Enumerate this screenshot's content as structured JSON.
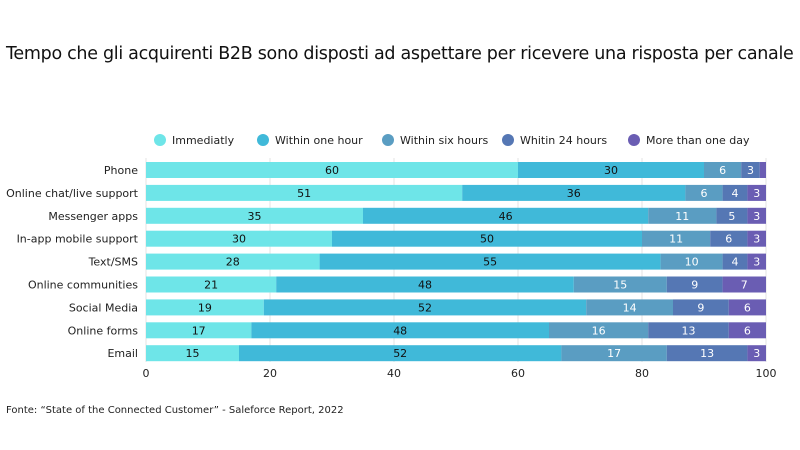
{
  "title": "Tempo che gli acquirenti B2B sono disposti ad aspettare per ricevere una risposta per canale",
  "source": "Fonte: “State of the Connected Customer” - Saleforce Report, 2022",
  "chart_data": {
    "type": "bar",
    "orientation": "horizontal",
    "stacked": true,
    "title": "Tempo che gli acquirenti B2B sono disposti ad aspettare per ricevere una risposta per canale",
    "categories": [
      "Phone",
      "Online chat/live support",
      "Messenger apps",
      "In-app mobile support",
      "Text/SMS",
      "Online communities",
      "Social Media",
      "Online forms",
      "Email"
    ],
    "series": [
      {
        "name": "Immediatly",
        "color": "#6ee5e8",
        "values": [
          60,
          51,
          35,
          30,
          28,
          21,
          19,
          17,
          15
        ]
      },
      {
        "name": "Within one hour",
        "color": "#40b9d9",
        "values": [
          30,
          36,
          46,
          50,
          55,
          48,
          52,
          48,
          52
        ]
      },
      {
        "name": "Within six hours",
        "color": "#5a9dc2",
        "values": [
          6,
          6,
          11,
          11,
          10,
          15,
          14,
          16,
          17
        ]
      },
      {
        "name": "Whitin 24 hours",
        "color": "#5577b4",
        "values": [
          3,
          4,
          5,
          6,
          4,
          9,
          9,
          13,
          13
        ]
      },
      {
        "name": "More than one day",
        "color": "#6a5db3",
        "values": [
          1,
          3,
          3,
          3,
          3,
          7,
          6,
          6,
          3
        ]
      }
    ],
    "xlim": [
      0,
      100
    ],
    "xticks": [
      0,
      20,
      40,
      60,
      80,
      100
    ],
    "grid": true,
    "legend": "top",
    "unlabeled_values": [
      {
        "category": "Phone",
        "series": "More than one day"
      }
    ]
  }
}
